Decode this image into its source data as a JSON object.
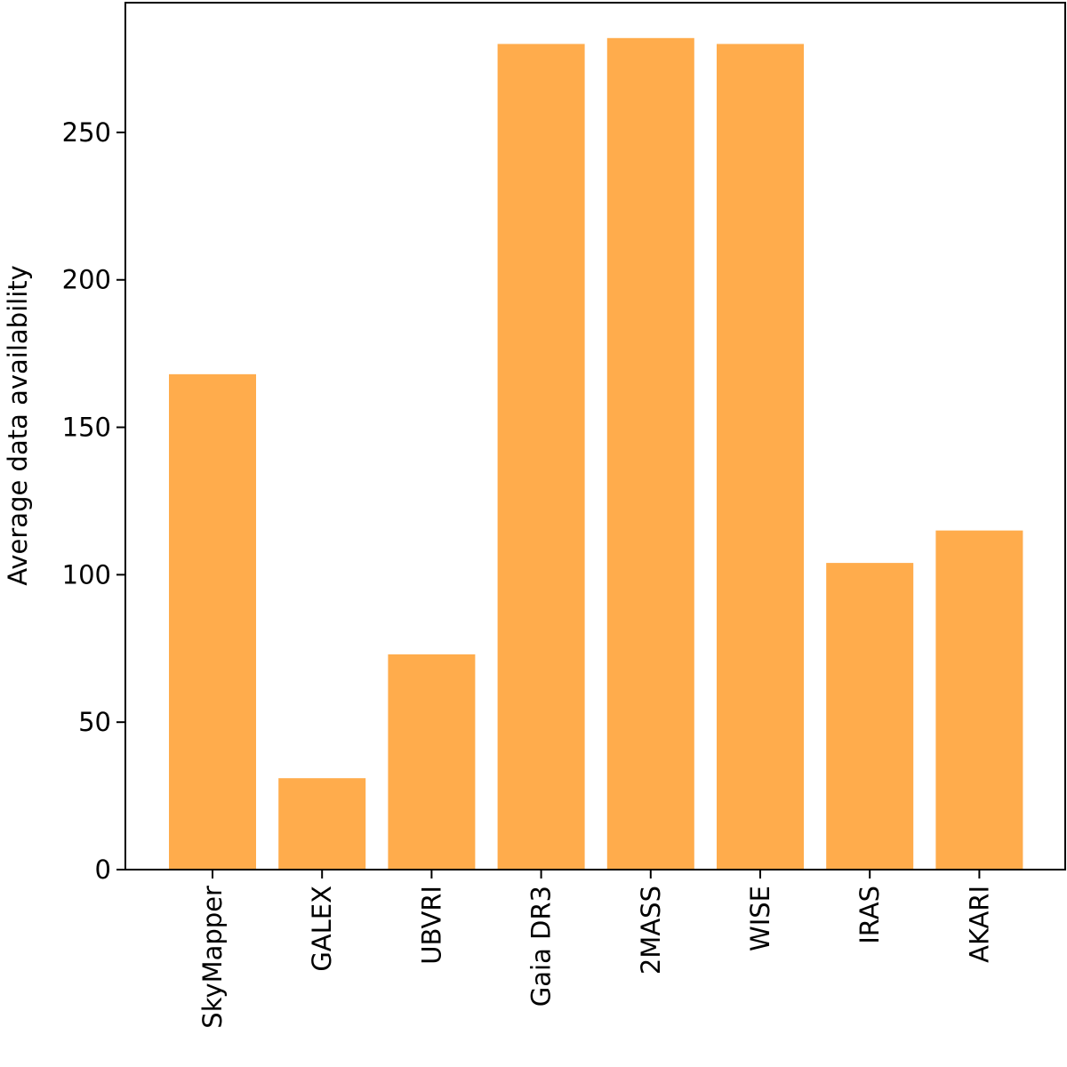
{
  "chart_data": {
    "type": "bar",
    "categories": [
      "SkyMapper",
      "GALEX",
      "UBVRI",
      "Gaia DR3",
      "2MASS",
      "WISE",
      "IRAS",
      "AKARI"
    ],
    "values": [
      168,
      31,
      73,
      280,
      282,
      280,
      104,
      115
    ],
    "title": "",
    "xlabel": "",
    "ylabel": "Average data availability",
    "ylim": [
      0,
      294
    ],
    "yticks": [
      0,
      50,
      100,
      150,
      200,
      250
    ],
    "ytick_labels": [
      "0",
      "50",
      "100",
      "150",
      "200",
      "250"
    ],
    "bar_color": "#ffac4c",
    "grid": false,
    "legend": "none"
  }
}
